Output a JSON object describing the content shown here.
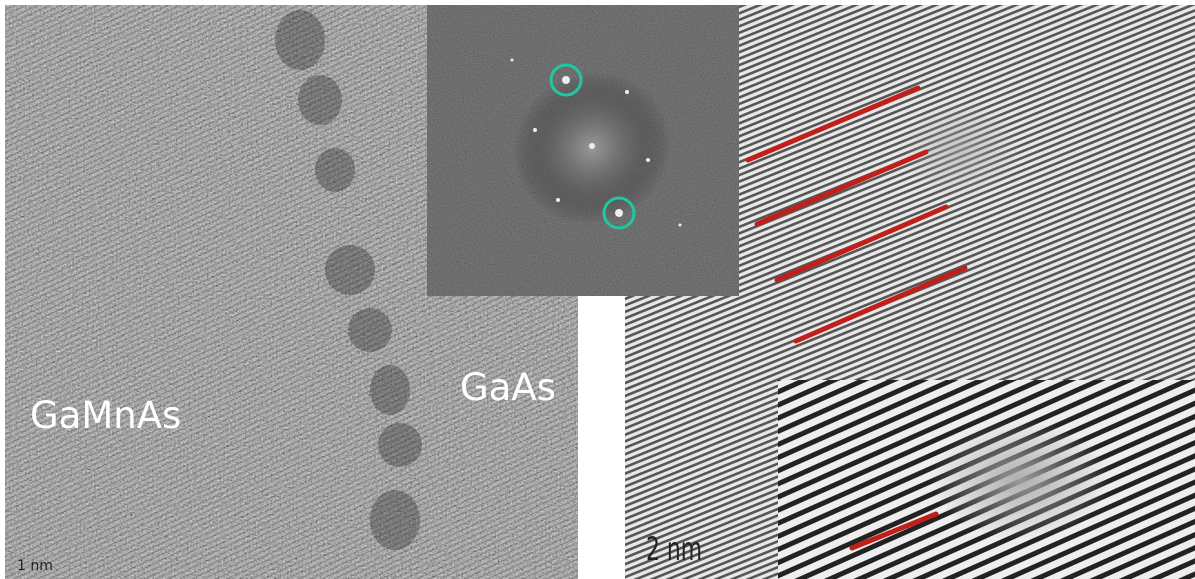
{
  "left_panel": {
    "label_left": "GaMnAs",
    "label_right": "GaAs",
    "scale_bar": "1 nm"
  },
  "right_panel": {
    "scale_bar": "2 nm"
  }
}
